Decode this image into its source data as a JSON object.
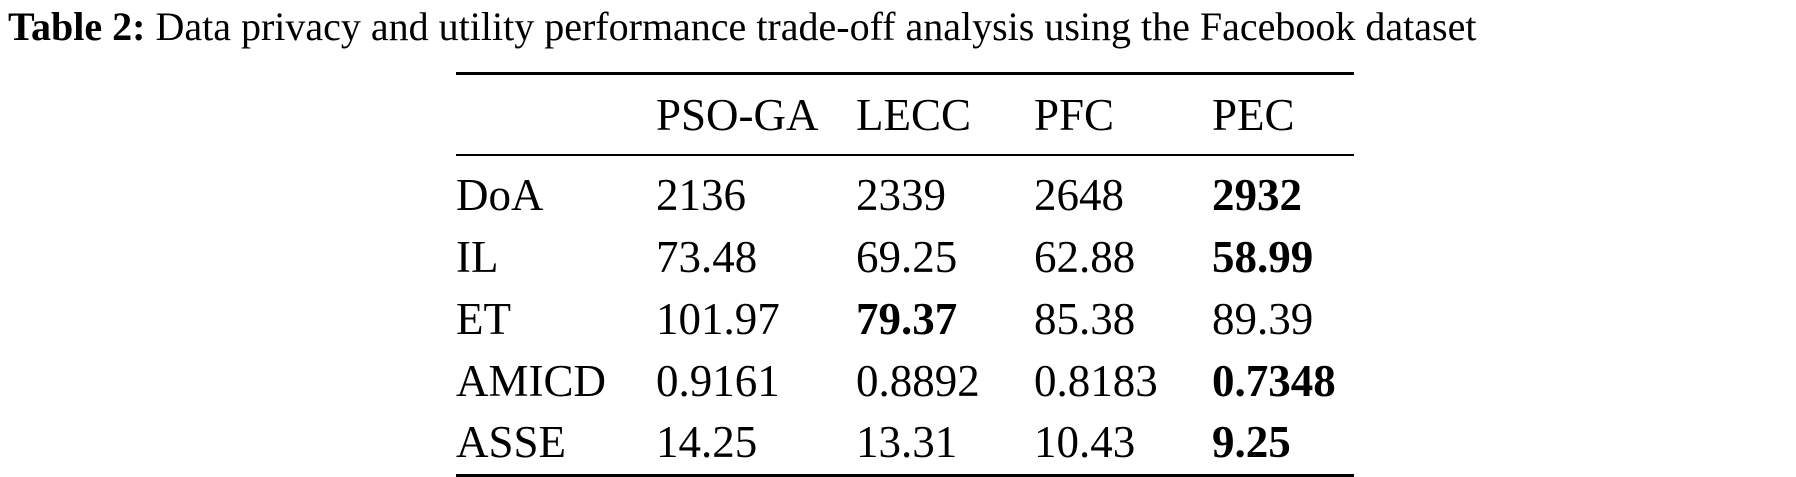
{
  "caption": {
    "label": "Table 2:",
    "text": "Data privacy and utility performance trade-off analysis using the Facebook dataset"
  },
  "table": {
    "columns": [
      "",
      "PSO-GA",
      "LECC",
      "PFC",
      "PEC"
    ],
    "rows": [
      {
        "metric": "DoA",
        "values": [
          "2136",
          "2339",
          "2648",
          "2932"
        ],
        "bold": [
          false,
          false,
          false,
          true
        ]
      },
      {
        "metric": "IL",
        "values": [
          "73.48",
          "69.25",
          "62.88",
          "58.99"
        ],
        "bold": [
          false,
          false,
          false,
          true
        ]
      },
      {
        "metric": "ET",
        "values": [
          "101.97",
          "79.37",
          "85.38",
          "89.39"
        ],
        "bold": [
          false,
          true,
          false,
          false
        ]
      },
      {
        "metric": "AMICD",
        "values": [
          "0.9161",
          "0.8892",
          "0.8183",
          "0.7348"
        ],
        "bold": [
          false,
          false,
          false,
          true
        ]
      },
      {
        "metric": "ASSE",
        "values": [
          "14.25",
          "13.31",
          "10.43",
          "9.25"
        ],
        "bold": [
          false,
          false,
          false,
          true
        ]
      }
    ]
  }
}
